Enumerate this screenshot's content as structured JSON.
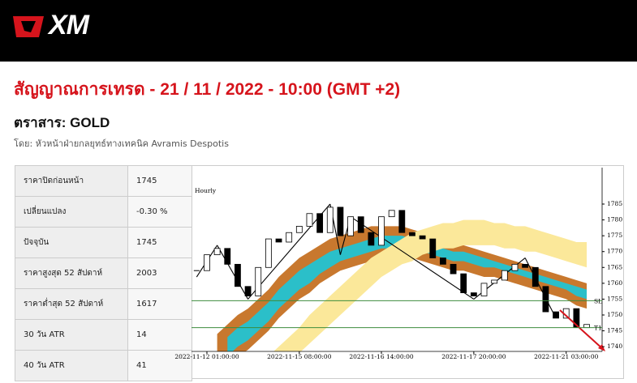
{
  "header": {
    "logo": "XM"
  },
  "title": "สัญญาณการเทรด - 21 / 11 / 2022 - 10:00 (GMT +2)",
  "instrument": "ตราสาร: GOLD",
  "byline": "โดย: หัวหน้าฝ่ายกลยุทธ์ทางเทคนิค Avramis Despotis",
  "table": {
    "rows": [
      [
        "ราคาปิดก่อนหน้า",
        "1745"
      ],
      [
        "เปลี่ยนแปลง",
        "-0.30 %"
      ],
      [
        "ปัจจุบัน",
        "1745"
      ],
      [
        "ราคาสูงสุด 52 สัปดาห์",
        "2003"
      ],
      [
        "ราคาต่ำสุด 52 สัปดาห์",
        "1617"
      ],
      [
        "30 วัน ATR",
        "14"
      ],
      [
        "40 วัน ATR",
        "41"
      ]
    ]
  },
  "chart_data": {
    "type": "candlestick",
    "label": "Hourly",
    "categories": [
      null,
      "2022-11-12 01:00:00",
      null,
      null,
      null,
      null,
      null,
      null,
      null,
      null,
      "2022-11-15 08:00:00",
      null,
      null,
      null,
      null,
      null,
      null,
      null,
      "2022-11-16 14:00:00",
      null,
      null,
      null,
      null,
      null,
      null,
      null,
      null,
      "2022-11-17 20:00:00",
      null,
      null,
      null,
      null,
      null,
      null,
      null,
      null,
      "2022-11-21 03:00:00",
      null,
      null,
      null
    ],
    "values": [
      1764,
      1769,
      1771,
      1766,
      1759,
      1756,
      1765,
      1774,
      1773,
      1776,
      1778,
      1782,
      1776,
      1784,
      1775,
      1781,
      1776,
      1772,
      1781,
      1783,
      1776,
      1775,
      1774,
      1768,
      1766,
      1763,
      1757,
      1756,
      1760,
      1761,
      1764,
      1766,
      1765,
      1759,
      1751,
      1749,
      1752,
      1746,
      1747,
      null
    ],
    "up_color": "#ffffff",
    "down_color": "#000000",
    "ylim": [
      1738.5,
      1796.5
    ],
    "yticks": [
      1740,
      1745,
      1750,
      1755,
      1760,
      1765,
      1770,
      1775,
      1780,
      1785
    ],
    "bands": [
      {
        "color": "#c8782e",
        "upper": [
          null,
          null,
          1744,
          1747,
          1750,
          1752,
          1755,
          1758,
          1762,
          1765,
          1768,
          1770,
          1772,
          1774,
          1775,
          1776,
          1777,
          1778,
          1778,
          1778,
          1778,
          1777,
          1776,
          1775,
          1774,
          1773,
          1772,
          1771,
          1770,
          1769,
          1768,
          1767,
          1766,
          1765,
          1764,
          1763,
          1762,
          1761,
          1760,
          null
        ],
        "lower": [
          null,
          null,
          1732,
          1734,
          1737,
          1739,
          1742,
          1745,
          1749,
          1752,
          1755,
          1757,
          1760,
          1762,
          1764,
          1765,
          1766,
          1767,
          1768,
          1768,
          1768,
          1768,
          1767,
          1766,
          1765,
          1764,
          1764,
          1763,
          1762,
          1762,
          1761,
          1760,
          1759,
          1758,
          1757,
          1756,
          1755,
          1753,
          1752,
          null
        ]
      },
      {
        "color": "#2bbfc9",
        "upper": [
          null,
          null,
          null,
          1743,
          1746,
          1748,
          1751,
          1754,
          1758,
          1761,
          1764,
          1766,
          1768,
          1770,
          1771,
          1772,
          1773,
          1774,
          1775,
          1775,
          1775,
          1774,
          1773,
          1772,
          1771,
          1770,
          1770,
          1769,
          1768,
          1767,
          1766,
          1765,
          1764,
          1763,
          1762,
          1761,
          1760,
          1759,
          1758,
          null
        ],
        "lower": [
          null,
          null,
          null,
          1737,
          1740,
          1742,
          1745,
          1748,
          1752,
          1755,
          1758,
          1760,
          1763,
          1765,
          1767,
          1768,
          1769,
          1770,
          1771,
          1771,
          1771,
          1771,
          1770,
          1769,
          1768,
          1767,
          1767,
          1766,
          1765,
          1765,
          1764,
          1763,
          1762,
          1761,
          1760,
          1759,
          1758,
          1756,
          1755,
          null
        ]
      },
      {
        "color": "#fbe89a",
        "upper": [
          null,
          null,
          null,
          null,
          null,
          null,
          null,
          1737,
          1740,
          1743,
          1746,
          1750,
          1753,
          1756,
          1759,
          1762,
          1765,
          1768,
          1770,
          1772,
          1774,
          1776,
          1777,
          1778,
          1779,
          1779,
          1780,
          1780,
          1780,
          1779,
          1779,
          1778,
          1778,
          1777,
          1776,
          1775,
          1774,
          1773,
          1773,
          null
        ],
        "lower": [
          null,
          null,
          null,
          null,
          null,
          null,
          null,
          1729,
          1732,
          1735,
          1738,
          1741,
          1744,
          1747,
          1750,
          1753,
          1756,
          1759,
          1762,
          1764,
          1766,
          1767,
          1769,
          1770,
          1771,
          1771,
          1772,
          1772,
          1772,
          1772,
          1771,
          1771,
          1770,
          1770,
          1769,
          1768,
          1767,
          1766,
          1765,
          null
        ]
      }
    ],
    "zigzag": [
      1762,
      null,
      1772,
      null,
      null,
      1755,
      null,
      null,
      null,
      null,
      null,
      null,
      null,
      1785,
      1769,
      1781,
      null,
      null,
      null,
      null,
      null,
      null,
      null,
      null,
      null,
      null,
      null,
      1755,
      null,
      null,
      null,
      null,
      1768,
      null,
      null,
      1749,
      null,
      null,
      null,
      null
    ],
    "zigzag_color": "#000000",
    "levels": [
      {
        "label": "SL",
        "value": 1754.5,
        "color": "#3d8c3d"
      },
      {
        "label": "T1",
        "value": 1746,
        "color": "#3d8c3d"
      }
    ]
  }
}
